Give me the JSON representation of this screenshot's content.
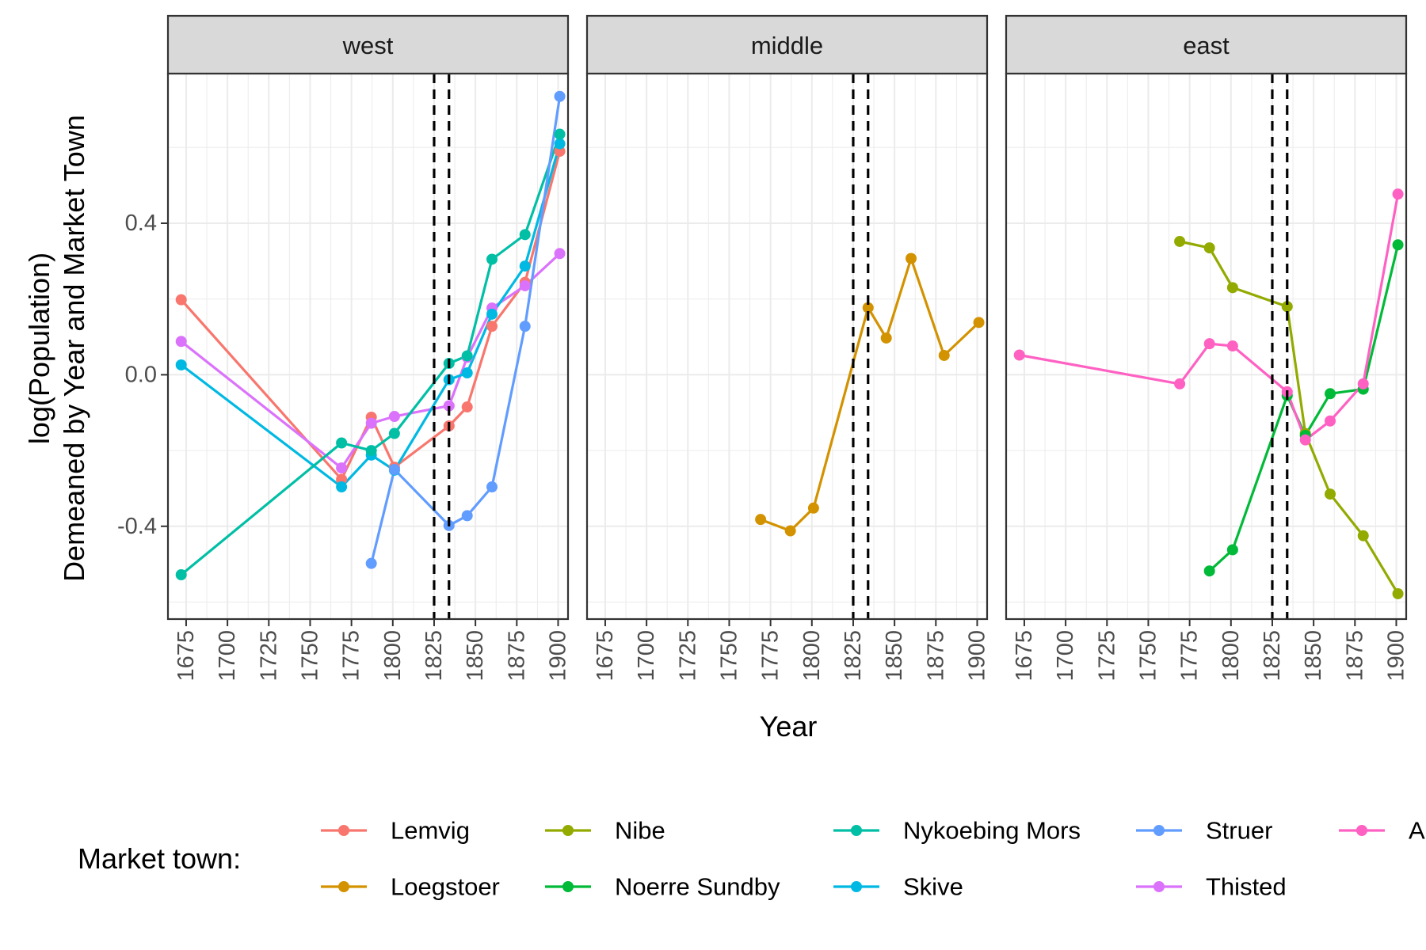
{
  "chart_data": {
    "type": "line",
    "facet_var": "region",
    "panels": [
      "west",
      "middle",
      "east"
    ],
    "xlabel": "Year",
    "ylabel_lines": [
      "log(Population)",
      "Demeaned by Year and Market Town"
    ],
    "x_ticks": [
      1675,
      1700,
      1725,
      1750,
      1775,
      1800,
      1825,
      1850,
      1875,
      1900
    ],
    "y_ticks": [
      -0.4,
      0.0,
      0.4
    ],
    "y_tick_labels": [
      "-0.4",
      "0.0",
      "0.4"
    ],
    "xlim": [
      1664,
      1906
    ],
    "ylim": [
      -0.645,
      0.795
    ],
    "vlines": [
      1825,
      1834
    ],
    "grid": true,
    "legend": {
      "title": "Market town:",
      "position": "bottom",
      "entries": [
        "Lemvig",
        "Nibe",
        "Nykoebing Mors",
        "Struer",
        "Aalborg",
        "Loegstoer",
        "Noerre Sundby",
        "Skive",
        "Thisted"
      ]
    },
    "series": [
      {
        "name": "Lemvig",
        "panel": "west",
        "color": "#F8766D",
        "x": [
          1672,
          1769,
          1787,
          1801,
          1834,
          1845,
          1860,
          1880,
          1901
        ],
        "y": [
          0.198,
          -0.276,
          -0.112,
          -0.244,
          -0.135,
          -0.085,
          0.128,
          0.244,
          0.59
        ]
      },
      {
        "name": "Thisted",
        "panel": "west",
        "color": "#DB72FB",
        "x": [
          1672,
          1769,
          1787,
          1801,
          1834,
          1845,
          1860,
          1880,
          1901
        ],
        "y": [
          0.088,
          -0.246,
          -0.128,
          -0.11,
          -0.082,
          0.046,
          0.176,
          0.235,
          0.32
        ]
      },
      {
        "name": "Skive",
        "panel": "west",
        "color": "#00B9E3",
        "x": [
          1672,
          1769,
          1787,
          1801,
          1834,
          1845,
          1860,
          1880,
          1901
        ],
        "y": [
          0.026,
          -0.296,
          -0.212,
          -0.252,
          -0.013,
          0.005,
          0.16,
          0.287,
          0.61
        ]
      },
      {
        "name": "Nykoebing Mors",
        "panel": "west",
        "color": "#00BFA5",
        "x": [
          1672,
          1769,
          1787,
          1801,
          1834,
          1845,
          1860,
          1880,
          1901
        ],
        "y": [
          -0.528,
          -0.18,
          -0.2,
          -0.155,
          0.03,
          0.05,
          0.305,
          0.37,
          0.635
        ]
      },
      {
        "name": "Struer",
        "panel": "west",
        "color": "#619CFF",
        "x": [
          1787,
          1801,
          1834,
          1845,
          1860,
          1880,
          1901
        ],
        "y": [
          -0.498,
          -0.25,
          -0.398,
          -0.372,
          -0.296,
          0.128,
          0.735
        ]
      },
      {
        "name": "Loegstoer",
        "panel": "middle",
        "color": "#D39200",
        "x": [
          1769,
          1787,
          1801,
          1834,
          1845,
          1860,
          1880,
          1901
        ],
        "y": [
          -0.382,
          -0.412,
          -0.352,
          0.177,
          0.097,
          0.307,
          0.051,
          0.138
        ]
      },
      {
        "name": "Nibe",
        "panel": "east",
        "color": "#93AA00",
        "x": [
          1769,
          1787,
          1801,
          1834,
          1845,
          1860,
          1880,
          1901
        ],
        "y": [
          0.352,
          0.335,
          0.23,
          0.18,
          -0.155,
          -0.315,
          -0.425,
          -0.578
        ]
      },
      {
        "name": "Noerre Sundby",
        "panel": "east",
        "color": "#00BA38",
        "x": [
          1787,
          1801,
          1834,
          1845,
          1860,
          1880,
          1901
        ],
        "y": [
          -0.518,
          -0.462,
          -0.055,
          -0.16,
          -0.05,
          -0.038,
          0.343
        ]
      },
      {
        "name": "Aalborg",
        "panel": "east",
        "color": "#FF61C3",
        "x": [
          1672,
          1769,
          1787,
          1801,
          1834,
          1845,
          1860,
          1880,
          1901
        ],
        "y": [
          0.052,
          -0.024,
          0.082,
          0.076,
          -0.045,
          -0.172,
          -0.122,
          -0.024,
          0.477
        ]
      }
    ]
  }
}
